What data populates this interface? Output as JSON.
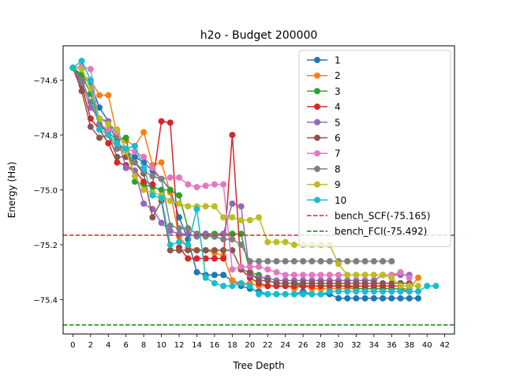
{
  "chart_data": {
    "type": "line",
    "title": "h2o - Budget  200000",
    "xlabel": "Tree Depth",
    "ylabel": "Energy (Ha)",
    "xlim": [
      -1.1,
      43.1
    ],
    "ylim": [
      -75.525,
      -74.475
    ],
    "xticks": [
      0,
      2,
      4,
      6,
      8,
      10,
      12,
      14,
      16,
      18,
      20,
      22,
      24,
      26,
      28,
      30,
      32,
      34,
      36,
      38,
      40,
      42
    ],
    "yticks": [
      -74.6,
      -74.8,
      -75.0,
      -75.2,
      -75.4
    ],
    "ytick_labels": [
      "−74.6",
      "−74.8",
      "−75.0",
      "−75.2",
      "−75.4"
    ],
    "legend_position": "top-right",
    "grid": false,
    "series": [
      {
        "name": "1",
        "color": "#1f77b4",
        "x": [
          0,
          1,
          2,
          3,
          4,
          5,
          6,
          7,
          8,
          9,
          10,
          11,
          12,
          13,
          14,
          15,
          16,
          17,
          18,
          19,
          20,
          21,
          22,
          23,
          24,
          25,
          26,
          27,
          28,
          29,
          30,
          31,
          32,
          33,
          34,
          35,
          36,
          37,
          38,
          39
        ],
        "y": [
          -74.555,
          -74.59,
          -74.61,
          -74.7,
          -74.75,
          -74.83,
          -74.86,
          -74.88,
          -74.9,
          -74.93,
          -74.96,
          -75.0,
          -75.1,
          -75.18,
          -75.3,
          -75.31,
          -75.31,
          -75.31,
          -75.33,
          -75.35,
          -75.36,
          -75.37,
          -75.38,
          -75.38,
          -75.38,
          -75.38,
          -75.37,
          -75.38,
          -75.38,
          -75.38,
          -75.395,
          -75.395,
          -75.395,
          -75.395,
          -75.395,
          -75.395,
          -75.395,
          -75.395,
          -75.395,
          -75.395
        ]
      },
      {
        "name": "2",
        "color": "#ff7f0e",
        "x": [
          0,
          1,
          2,
          3,
          4,
          5,
          6,
          7,
          8,
          9,
          10,
          11,
          12,
          13,
          14,
          15,
          16,
          17,
          18,
          19,
          20,
          21,
          22,
          23,
          24,
          25,
          26,
          27,
          28,
          29,
          30,
          31,
          32,
          33,
          34,
          35,
          36,
          37,
          38,
          39
        ],
        "y": [
          -74.555,
          -74.58,
          -74.6,
          -74.655,
          -74.655,
          -74.8,
          -74.82,
          -74.84,
          -74.79,
          -74.91,
          -74.9,
          -75.01,
          -75.17,
          -75.21,
          -75.22,
          -75.22,
          -75.23,
          -75.24,
          -75.33,
          -75.34,
          -75.34,
          -75.35,
          -75.35,
          -75.35,
          -75.35,
          -75.36,
          -75.35,
          -75.36,
          -75.36,
          -75.36,
          -75.36,
          -75.36,
          -75.36,
          -75.36,
          -75.36,
          -75.36,
          -75.36,
          -75.36,
          -75.36,
          -75.32
        ]
      },
      {
        "name": "3",
        "color": "#2ca02c",
        "x": [
          0,
          1,
          2,
          3,
          4,
          5,
          6,
          7,
          8,
          9,
          10,
          11,
          12,
          13,
          14,
          15,
          16,
          17,
          18,
          19,
          20,
          21,
          22,
          23,
          24,
          25,
          26,
          27,
          28,
          29,
          30,
          31,
          32,
          33,
          34,
          35,
          36,
          37,
          38
        ],
        "y": [
          -74.555,
          -74.58,
          -74.65,
          -74.76,
          -74.79,
          -74.82,
          -74.81,
          -74.97,
          -74.98,
          -74.99,
          -75.0,
          -75.0,
          -75.02,
          -75.14,
          -75.16,
          -75.16,
          -75.16,
          -75.16,
          -75.16,
          -75.16,
          -75.3,
          -75.31,
          -75.33,
          -75.34,
          -75.34,
          -75.34,
          -75.35,
          -75.35,
          -75.35,
          -75.35,
          -75.35,
          -75.35,
          -75.36,
          -75.36,
          -75.36,
          -75.36,
          -75.36,
          -75.36,
          -75.37
        ]
      },
      {
        "name": "4",
        "color": "#d62728",
        "x": [
          0,
          1,
          2,
          3,
          4,
          5,
          6,
          7,
          8,
          9,
          10,
          11,
          12,
          13,
          14,
          15,
          16,
          17,
          18,
          19,
          20,
          21,
          22,
          23,
          24,
          25,
          26,
          27,
          28,
          29,
          30,
          31,
          32,
          33,
          34,
          35,
          36,
          37,
          38
        ],
        "y": [
          -74.555,
          -74.62,
          -74.74,
          -74.78,
          -74.83,
          -74.9,
          -74.91,
          -74.93,
          -74.97,
          -74.98,
          -74.75,
          -74.755,
          -75.21,
          -75.25,
          -75.25,
          -75.25,
          -75.25,
          -75.25,
          -74.8,
          -75.29,
          -75.32,
          -75.34,
          -75.35,
          -75.35,
          -75.35,
          -75.35,
          -75.35,
          -75.35,
          -75.35,
          -75.35,
          -75.35,
          -75.35,
          -75.35,
          -75.35,
          -75.35,
          -75.35,
          -75.35,
          -75.35,
          -75.35
        ]
      },
      {
        "name": "5",
        "color": "#9467bd",
        "x": [
          0,
          1,
          2,
          3,
          4,
          5,
          6,
          7,
          8,
          9,
          10,
          11,
          12,
          13,
          14,
          15,
          16,
          17,
          18,
          19,
          20,
          21,
          22,
          23,
          24,
          25,
          26,
          27,
          28,
          29,
          30,
          31,
          32,
          33,
          34,
          35,
          36,
          37,
          38
        ],
        "y": [
          -74.555,
          -74.61,
          -74.7,
          -74.74,
          -74.75,
          -74.8,
          -74.92,
          -74.93,
          -75.05,
          -75.07,
          -75.12,
          -75.15,
          -75.16,
          -75.16,
          -75.17,
          -75.16,
          -75.17,
          -75.16,
          -75.05,
          -75.06,
          -75.31,
          -75.32,
          -75.32,
          -75.33,
          -75.33,
          -75.33,
          -75.33,
          -75.33,
          -75.33,
          -75.33,
          -75.33,
          -75.33,
          -75.33,
          -75.33,
          -75.33,
          -75.31,
          -75.31,
          -75.31,
          -75.31
        ]
      },
      {
        "name": "6",
        "color": "#8c564b",
        "x": [
          0,
          1,
          2,
          3,
          4,
          5,
          6,
          7,
          8,
          9,
          10,
          11,
          12,
          13,
          14,
          15,
          16,
          17,
          18,
          19,
          20,
          21,
          22,
          23,
          24,
          25,
          26,
          27,
          28,
          29,
          30,
          31,
          32,
          33,
          34,
          35,
          36,
          37,
          38
        ],
        "y": [
          -74.555,
          -74.64,
          -74.77,
          -74.81,
          -74.8,
          -74.88,
          -74.88,
          -74.9,
          -74.94,
          -75.1,
          -75.04,
          -75.22,
          -75.22,
          -75.22,
          -75.22,
          -75.22,
          -75.22,
          -75.22,
          -75.22,
          -75.29,
          -75.3,
          -75.33,
          -75.33,
          -75.34,
          -75.34,
          -75.34,
          -75.34,
          -75.34,
          -75.34,
          -75.34,
          -75.34,
          -75.34,
          -75.34,
          -75.34,
          -75.34,
          -75.34,
          -75.34,
          -75.34,
          -75.34
        ]
      },
      {
        "name": "7",
        "color": "#e377c2",
        "x": [
          0,
          1,
          2,
          3,
          4,
          5,
          6,
          7,
          8,
          9,
          10,
          11,
          12,
          13,
          14,
          15,
          16,
          17,
          18,
          19,
          20,
          21,
          22,
          23,
          24,
          25,
          26,
          27,
          28,
          29,
          30,
          31,
          32,
          33,
          34,
          35,
          36,
          37,
          38
        ],
        "y": [
          -74.555,
          -74.55,
          -74.56,
          -74.76,
          -74.78,
          -74.79,
          -74.85,
          -74.86,
          -74.88,
          -74.92,
          -74.96,
          -74.955,
          -74.955,
          -74.98,
          -74.99,
          -74.985,
          -74.98,
          -74.98,
          -75.29,
          -75.28,
          -75.28,
          -75.28,
          -75.29,
          -75.3,
          -75.31,
          -75.31,
          -75.31,
          -75.31,
          -75.31,
          -75.31,
          -75.31,
          -75.31,
          -75.31,
          -75.31,
          -75.31,
          -75.31,
          -75.31,
          -75.3,
          -75.32
        ]
      },
      {
        "name": "8",
        "color": "#7f7f7f",
        "x": [
          0,
          1,
          2,
          3,
          4,
          5,
          6,
          7,
          8,
          9,
          10,
          11,
          12,
          13,
          14,
          15,
          16,
          17,
          18,
          19,
          20,
          21,
          22,
          23,
          24,
          25,
          26,
          27,
          28,
          29,
          30,
          31,
          32,
          33,
          34,
          35,
          36
        ],
        "y": [
          -74.555,
          -74.6,
          -74.68,
          -74.76,
          -74.8,
          -74.85,
          -74.86,
          -74.9,
          -74.93,
          -74.95,
          -74.96,
          -75.13,
          -75.14,
          -75.14,
          -75.16,
          -75.17,
          -75.17,
          -75.18,
          -75.18,
          -75.2,
          -75.26,
          -75.26,
          -75.26,
          -75.26,
          -75.26,
          -75.26,
          -75.26,
          -75.26,
          -75.26,
          -75.26,
          -75.26,
          -75.26,
          -75.26,
          -75.26,
          -75.26,
          -75.26,
          -75.26
        ]
      },
      {
        "name": "9",
        "color": "#bcbd22",
        "x": [
          0,
          1,
          2,
          3,
          4,
          5,
          6,
          7,
          8,
          9,
          10,
          11,
          12,
          13,
          14,
          15,
          16,
          17,
          18,
          19,
          20,
          21,
          22,
          23,
          24,
          25,
          26,
          27,
          28,
          29,
          30,
          31,
          32,
          33,
          34,
          35,
          36,
          37,
          38,
          39
        ],
        "y": [
          -74.555,
          -74.56,
          -74.63,
          -74.74,
          -74.76,
          -74.78,
          -74.86,
          -74.95,
          -75.0,
          -75.01,
          -75.02,
          -75.04,
          -75.05,
          -75.06,
          -75.06,
          -75.06,
          -75.06,
          -75.1,
          -75.1,
          -75.11,
          -75.11,
          -75.1,
          -75.19,
          -75.19,
          -75.19,
          -75.2,
          -75.2,
          -75.2,
          -75.2,
          -75.2,
          -75.27,
          -75.31,
          -75.31,
          -75.31,
          -75.31,
          -75.31,
          -75.32,
          -75.35,
          -75.35,
          -75.35
        ]
      },
      {
        "name": "10",
        "color": "#17becf",
        "x": [
          0,
          1,
          2,
          3,
          4,
          5,
          6,
          7,
          8,
          9,
          10,
          11,
          12,
          13,
          14,
          15,
          16,
          17,
          18,
          19,
          20,
          21,
          22,
          23,
          24,
          25,
          26,
          27,
          28,
          29,
          30,
          31,
          32,
          33,
          34,
          35,
          36,
          37,
          38,
          39,
          40,
          41
        ],
        "y": [
          -74.555,
          -74.53,
          -74.6,
          -74.78,
          -74.8,
          -74.83,
          -74.85,
          -74.84,
          -74.92,
          -75.02,
          -75.03,
          -75.2,
          -75.19,
          -75.2,
          -75.07,
          -75.32,
          -75.34,
          -75.35,
          -75.35,
          -75.34,
          -75.35,
          -75.38,
          -75.38,
          -75.38,
          -75.38,
          -75.38,
          -75.38,
          -75.38,
          -75.38,
          -75.37,
          -75.37,
          -75.37,
          -75.37,
          -75.37,
          -75.37,
          -75.37,
          -75.37,
          -75.37,
          -75.37,
          -75.37,
          -75.35,
          -75.35
        ]
      },
      {
        "name": "bench_SCF(-75.165)",
        "color": "#d62728",
        "style": "dashed",
        "hline": -75.165
      },
      {
        "name": "bench_FCI(-75.492)",
        "color": "#008000",
        "style": "dashed",
        "hline": -75.492
      }
    ]
  }
}
